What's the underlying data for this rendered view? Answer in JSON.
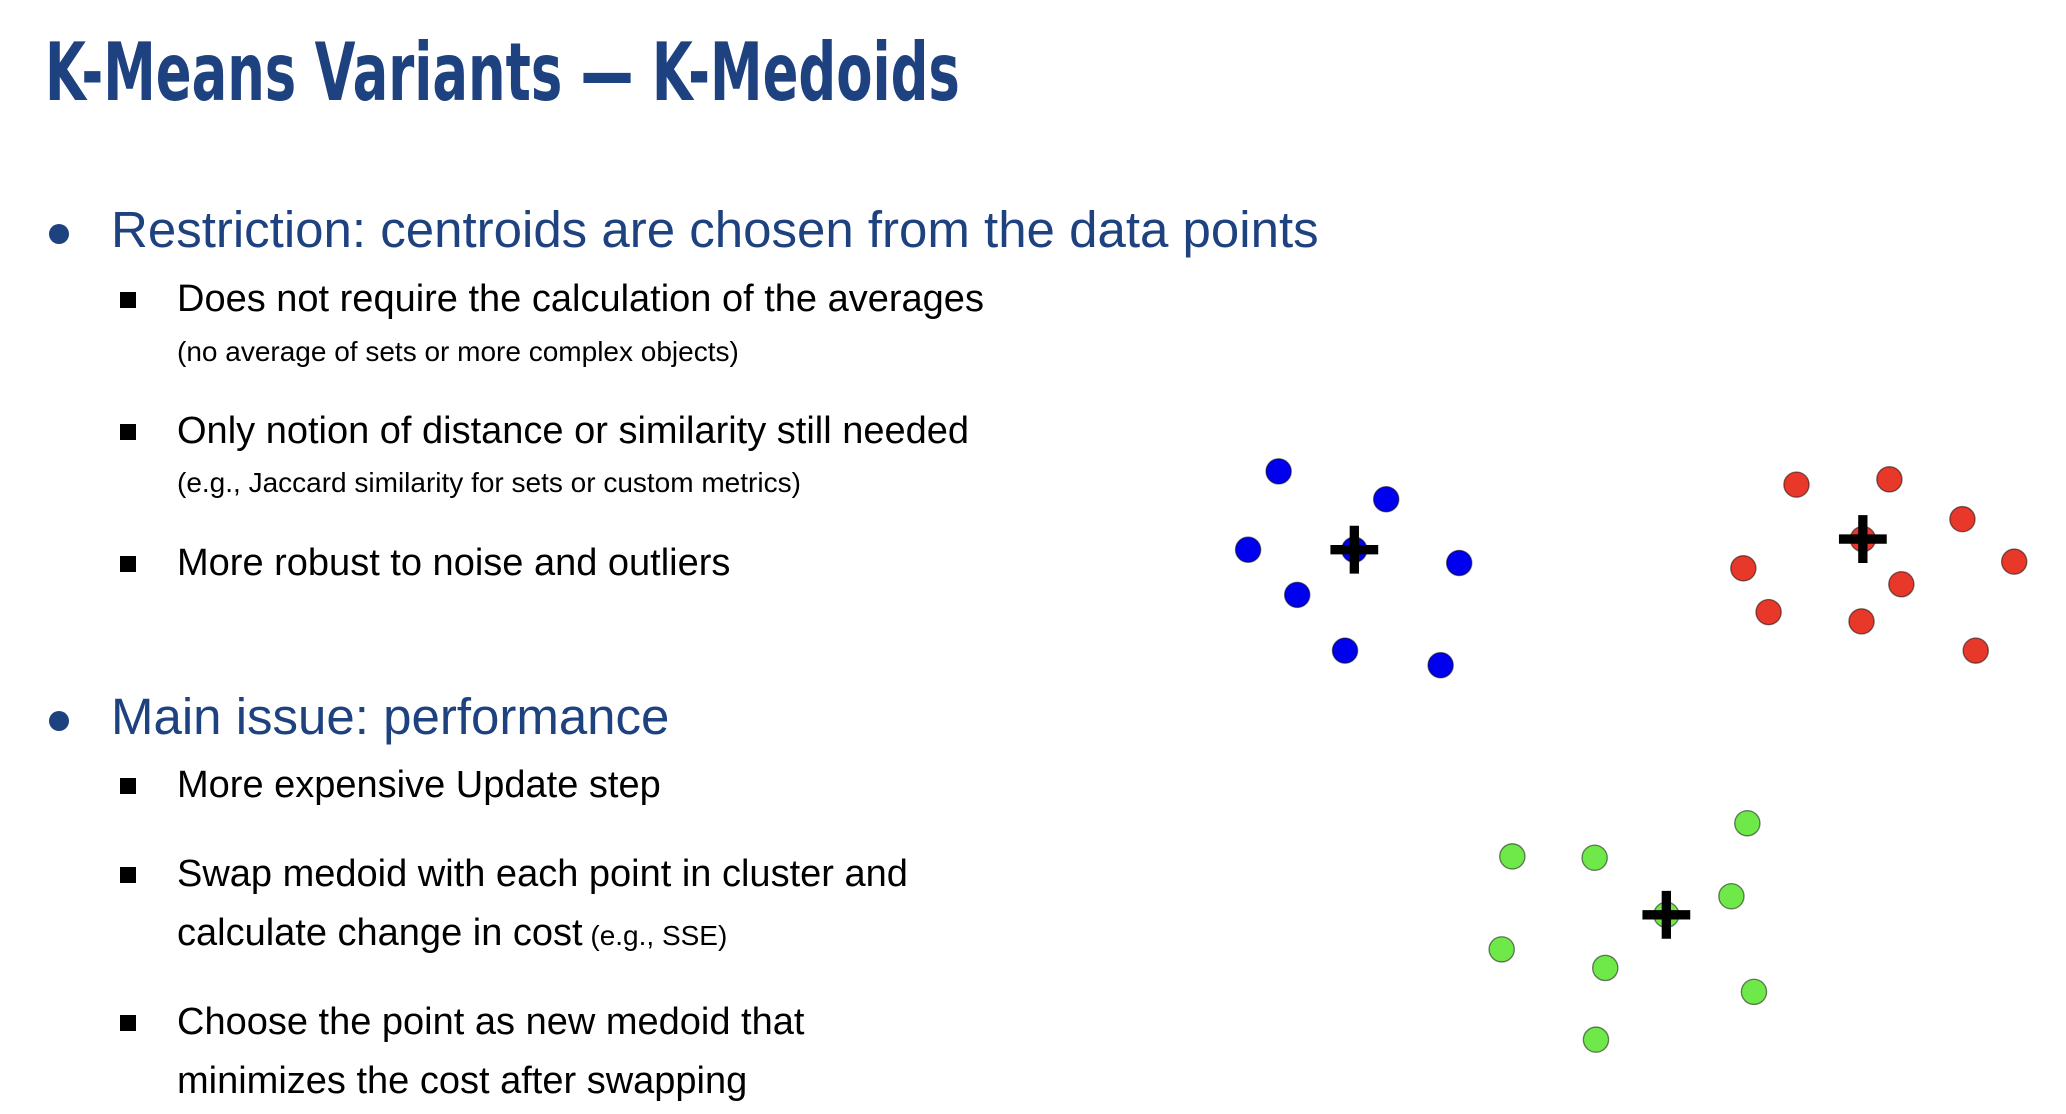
{
  "slide": {
    "title": "K-Means Variants — K-Medoids",
    "bullets": [
      {
        "text": "Restriction: centroids are chosen from the data points",
        "subs": [
          {
            "text": "Does not require the calculation of the averages",
            "note": "(no average of sets or more complex objects)"
          },
          {
            "text": "Only notion of distance or similarity still needed",
            "note": "(e.g., Jaccard similarity for sets or custom metrics)"
          },
          {
            "text": "More robust to noise and outliers"
          }
        ]
      },
      {
        "text": "Main issue: performance",
        "subs": [
          {
            "text": "More expensive Update step"
          },
          {
            "line1": "Swap medoid with each point in cluster and",
            "line2": "calculate change in cost",
            "line2_small": " (e.g., SSE)"
          },
          {
            "line1": "Choose the point as new medoid that",
            "line2": "minimizes the cost after swapping"
          }
        ]
      }
    ]
  },
  "colors": {
    "title": "#1e4180",
    "blue_cluster": "#0000ee",
    "red_cluster": "#e8382a",
    "green_cluster": "#6fe84a",
    "medoid_marker": "#000000"
  },
  "clusters": [
    {
      "color": "#0000ee",
      "points": [
        [
          963,
          355
        ],
        [
          1044,
          376
        ],
        [
          940,
          414
        ],
        [
          1020,
          414
        ],
        [
          1099,
          424
        ],
        [
          977,
          448
        ],
        [
          1013,
          490
        ],
        [
          1085,
          501
        ]
      ],
      "medoid": [
        1020,
        414
      ]
    },
    {
      "color": "#e8382a",
      "points": [
        [
          1353,
          365
        ],
        [
          1423,
          361
        ],
        [
          1478,
          391
        ],
        [
          1517,
          423
        ],
        [
          1313,
          428
        ],
        [
          1403,
          406
        ],
        [
          1432,
          440
        ],
        [
          1332,
          461
        ],
        [
          1402,
          468
        ],
        [
          1488,
          490
        ]
      ],
      "medoid": [
        1403,
        406
      ]
    },
    {
      "color": "#6fe84a",
      "points": [
        [
          1316,
          620
        ],
        [
          1139,
          645
        ],
        [
          1201,
          646
        ],
        [
          1304,
          675
        ],
        [
          1255,
          689
        ],
        [
          1131,
          715
        ],
        [
          1209,
          729
        ],
        [
          1321,
          747
        ],
        [
          1202,
          783
        ]
      ],
      "medoid": [
        1255,
        689
      ]
    }
  ]
}
